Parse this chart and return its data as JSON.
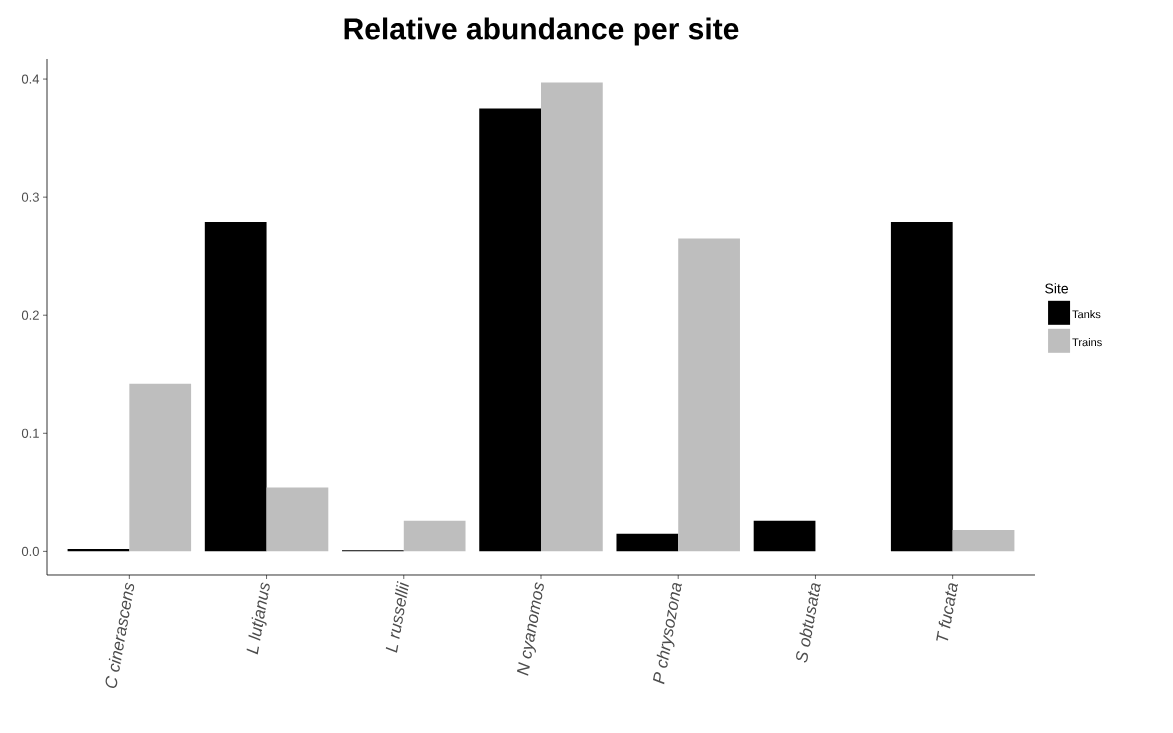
{
  "chart_data": {
    "type": "bar",
    "title": "Relative abundance per site",
    "legend_title": "Site",
    "categories": [
      "C cinerascens",
      "L lutjanus",
      "L russellii",
      "N cyanomos",
      "P chrysozona",
      "S obtusata",
      "T fucata"
    ],
    "series": [
      {
        "name": "Tanks",
        "color": "#000000",
        "values": [
          0.002,
          0.279,
          0.001,
          0.375,
          0.015,
          0.026,
          0.279
        ]
      },
      {
        "name": "Trains",
        "color": "#bebebe",
        "values": [
          0.142,
          0.054,
          0.026,
          0.397,
          0.265,
          null,
          0.018
        ]
      }
    ],
    "ylim": [
      -0.02,
      0.417
    ],
    "yticks": [
      {
        "value": 0,
        "label": "0.0"
      },
      {
        "value": 0.1,
        "label": "0.1"
      },
      {
        "value": 0.2,
        "label": "0.2"
      },
      {
        "value": 0.3,
        "label": "0.3"
      },
      {
        "value": 0.4,
        "label": "0.4"
      }
    ],
    "grid": false,
    "legend": "right"
  }
}
